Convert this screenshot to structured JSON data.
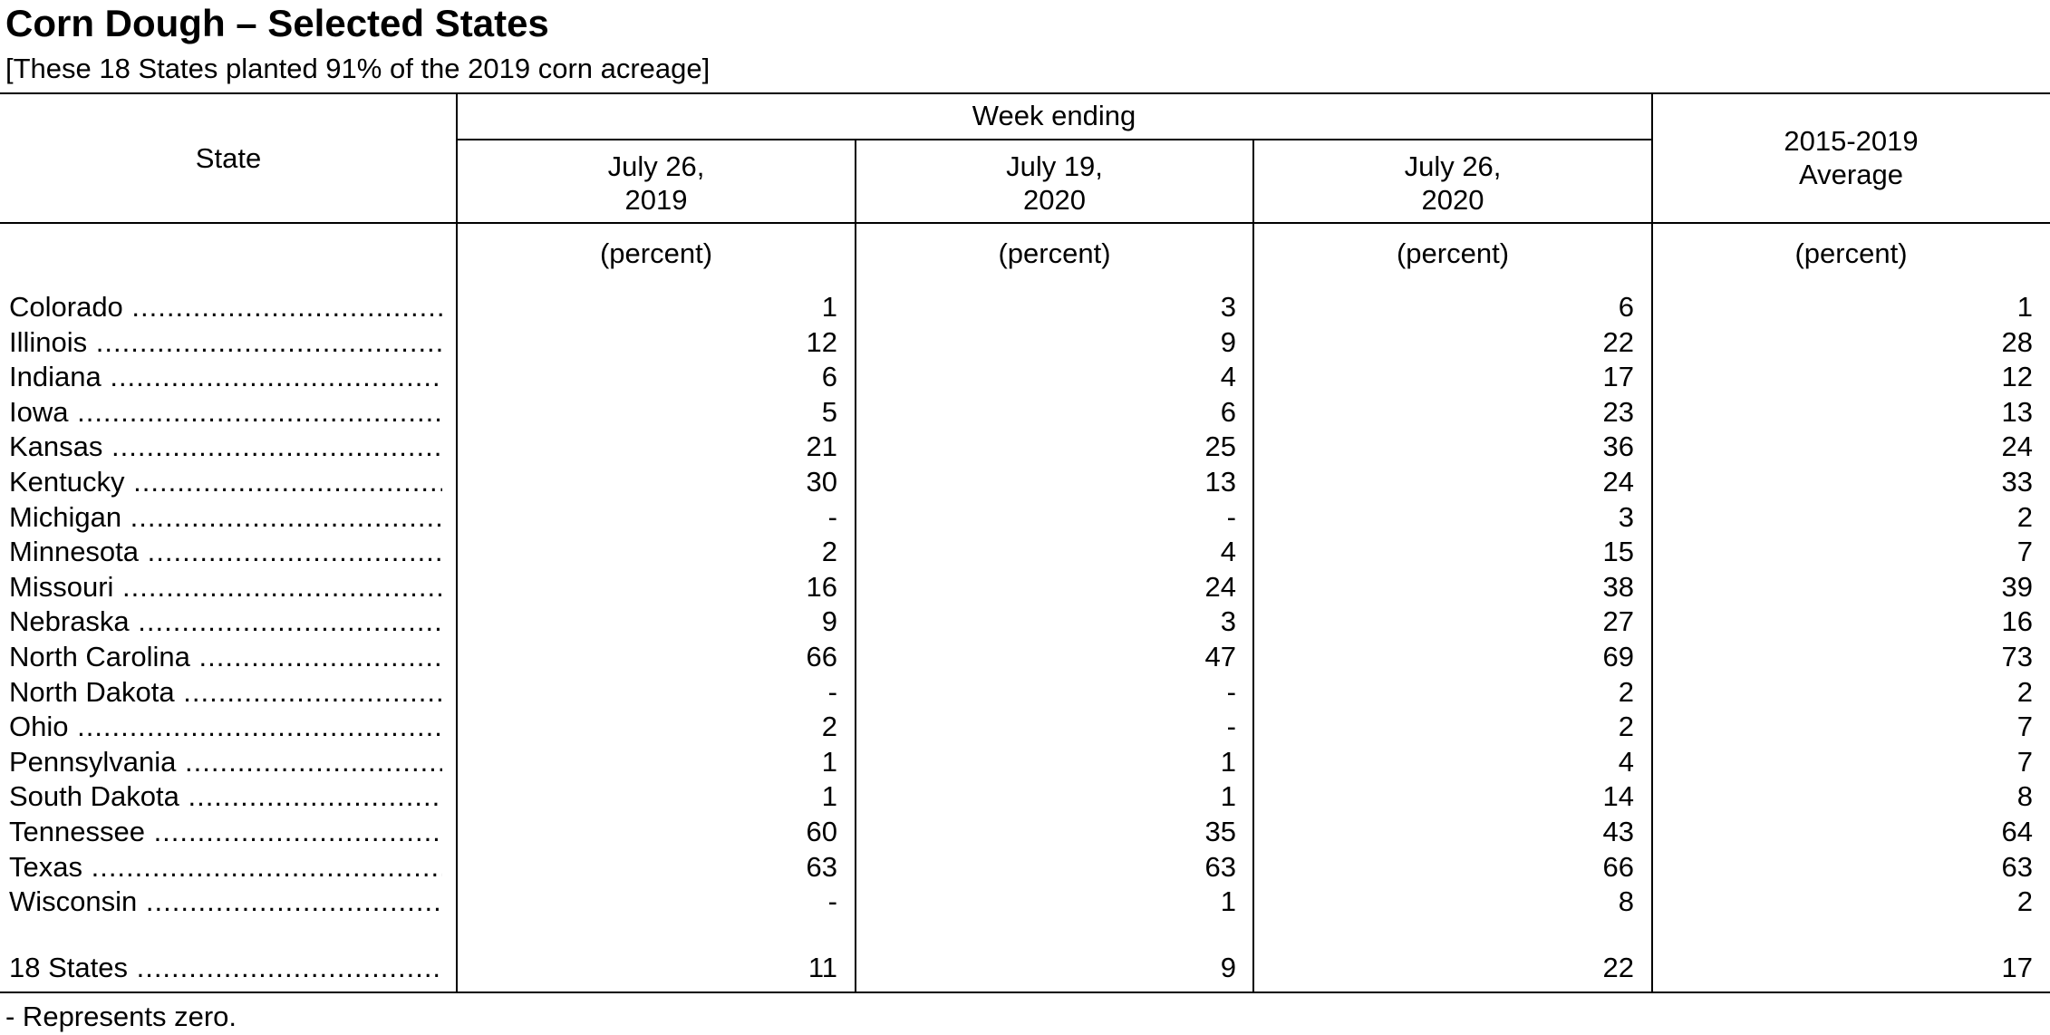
{
  "title": "Corn Dough – Selected States",
  "subtitle": "[These 18 States planted 91% of the 2019 corn acreage]",
  "table": {
    "state_header": "State",
    "group_header": "Week ending",
    "columns": [
      {
        "line1": "July 26,",
        "line2": "2019",
        "unit": "(percent)"
      },
      {
        "line1": "July 19,",
        "line2": "2020",
        "unit": "(percent)"
      },
      {
        "line1": "July 26,",
        "line2": "2020",
        "unit": "(percent)"
      },
      {
        "line1": "2015-2019",
        "line2": "Average",
        "unit": "(percent)"
      }
    ],
    "rows": [
      {
        "state": "Colorado",
        "values": [
          "1",
          "3",
          "6",
          "1"
        ]
      },
      {
        "state": "Illinois",
        "values": [
          "12",
          "9",
          "22",
          "28"
        ]
      },
      {
        "state": "Indiana",
        "values": [
          "6",
          "4",
          "17",
          "12"
        ]
      },
      {
        "state": "Iowa",
        "values": [
          "5",
          "6",
          "23",
          "13"
        ]
      },
      {
        "state": "Kansas",
        "values": [
          "21",
          "25",
          "36",
          "24"
        ]
      },
      {
        "state": "Kentucky",
        "values": [
          "30",
          "13",
          "24",
          "33"
        ]
      },
      {
        "state": "Michigan",
        "values": [
          "-",
          "-",
          "3",
          "2"
        ]
      },
      {
        "state": "Minnesota",
        "values": [
          "2",
          "4",
          "15",
          "7"
        ]
      },
      {
        "state": "Missouri",
        "values": [
          "16",
          "24",
          "38",
          "39"
        ]
      },
      {
        "state": "Nebraska",
        "values": [
          "9",
          "3",
          "27",
          "16"
        ]
      },
      {
        "state": "North Carolina",
        "values": [
          "66",
          "47",
          "69",
          "73"
        ]
      },
      {
        "state": "North Dakota",
        "values": [
          "-",
          "-",
          "2",
          "2"
        ]
      },
      {
        "state": "Ohio",
        "values": [
          "2",
          "-",
          "2",
          "7"
        ]
      },
      {
        "state": "Pennsylvania",
        "values": [
          "1",
          "1",
          "4",
          "7"
        ]
      },
      {
        "state": "South Dakota",
        "values": [
          "1",
          "1",
          "14",
          "8"
        ]
      },
      {
        "state": "Tennessee",
        "values": [
          "60",
          "35",
          "43",
          "64"
        ]
      },
      {
        "state": "Texas",
        "values": [
          "63",
          "63",
          "66",
          "63"
        ]
      },
      {
        "state": "Wisconsin",
        "values": [
          "-",
          "1",
          "8",
          "2"
        ]
      }
    ],
    "total": {
      "state": "18 States",
      "values": [
        "11",
        "9",
        "22",
        "17"
      ]
    }
  },
  "footnote": "- Represents zero."
}
